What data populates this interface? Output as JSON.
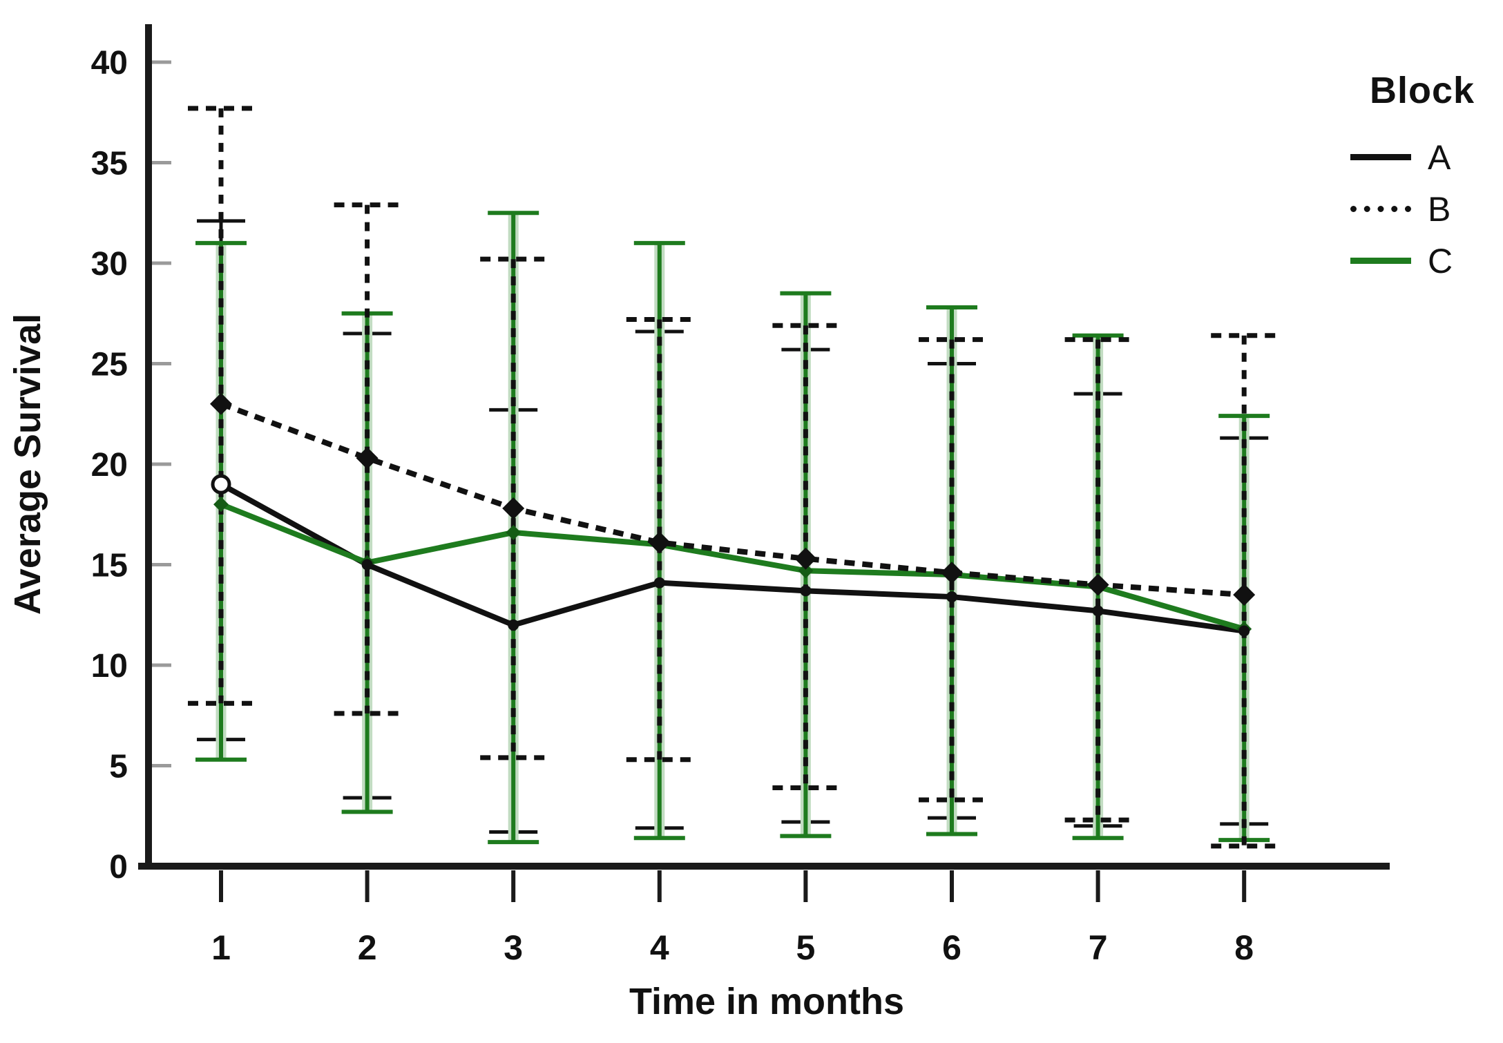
{
  "chart_data": {
    "type": "line",
    "title": "",
    "xlabel": "Time in months",
    "ylabel": "Average Survival",
    "x": [
      1,
      2,
      3,
      4,
      5,
      6,
      7,
      8
    ],
    "xlim": [
      0.5,
      9.0
    ],
    "ylim": [
      0,
      40
    ],
    "ytick_step": 5,
    "yticks": [
      0,
      5,
      10,
      15,
      20,
      25,
      30,
      35,
      40
    ],
    "grid": false,
    "error_bars": true,
    "legend_position": "top-right",
    "series": [
      {
        "name": "A",
        "style": "solid",
        "color": "#111111",
        "marker": "circle-open-first",
        "values": [
          19.0,
          15.0,
          12.0,
          14.1,
          13.7,
          13.4,
          12.7,
          11.7
        ],
        "upper": [
          32.1,
          26.5,
          22.7,
          26.6,
          25.7,
          25.0,
          23.5,
          21.3
        ],
        "lower": [
          6.3,
          3.4,
          1.7,
          1.9,
          2.2,
          2.4,
          2.0,
          2.1
        ]
      },
      {
        "name": "B",
        "style": "dotted",
        "color": "#111111",
        "marker": "diamond",
        "values": [
          23.0,
          20.3,
          17.8,
          16.1,
          15.3,
          14.6,
          14.0,
          13.5
        ],
        "upper": [
          37.7,
          32.9,
          30.2,
          27.2,
          26.9,
          26.2,
          26.2,
          26.4
        ],
        "lower": [
          8.1,
          7.6,
          5.4,
          5.3,
          3.9,
          3.3,
          2.3,
          1.0
        ]
      },
      {
        "name": "C",
        "style": "solid",
        "color": "#1e7b1e",
        "marker": "diamond-small",
        "values": [
          18.0,
          15.1,
          16.6,
          16.0,
          14.7,
          14.5,
          13.9,
          11.8
        ],
        "upper": [
          31.0,
          27.5,
          32.5,
          31.0,
          28.5,
          27.8,
          26.4,
          22.4
        ],
        "lower": [
          5.3,
          2.7,
          1.2,
          1.4,
          1.5,
          1.6,
          1.4,
          1.3
        ]
      }
    ]
  },
  "legend": {
    "title": "Block",
    "entries": [
      {
        "label": "A",
        "style": "solid-black"
      },
      {
        "label": "B",
        "style": "dotted-black"
      },
      {
        "label": "C",
        "style": "solid-green"
      }
    ]
  },
  "colors": {
    "axis": "#1a1a1a",
    "tick_gray": "#9a9a9a",
    "black_series": "#111111",
    "green_series": "#1e7b1e",
    "green_marker": "#155c15",
    "green_halo": "#c2dcc2"
  }
}
